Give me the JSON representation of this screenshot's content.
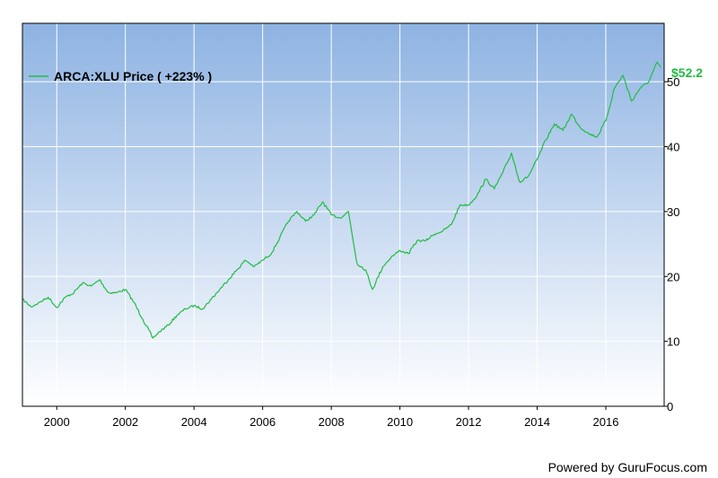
{
  "chart_data": {
    "type": "line",
    "legend": "ARCA:XLU Price ( +223% )",
    "last_value_label": "$52.2",
    "credit": "Powered by GuruFocus.com",
    "x_ticks": [
      "2000",
      "2002",
      "2004",
      "2006",
      "2008",
      "2010",
      "2012",
      "2014",
      "2016"
    ],
    "y_ticks": [
      "0",
      "10",
      "20",
      "30",
      "40",
      "50"
    ],
    "xlim": [
      1999.0,
      2017.7
    ],
    "ylim": [
      0,
      59
    ],
    "legend_position": "top-left",
    "grid": true,
    "colors": {
      "line": "#22bb44",
      "grid": "#ffffff",
      "bg_top": "#8eb3e2",
      "bg_bottom": "#ffffff"
    },
    "series": [
      {
        "x": [
          1999.0,
          1999.25,
          1999.5,
          1999.75,
          2000.0,
          2000.25,
          2000.5,
          2000.75,
          2001.0,
          2001.25,
          2001.5,
          2001.75,
          2002.0,
          2002.25,
          2002.5,
          2002.8,
          2003.0,
          2003.25,
          2003.5,
          2003.75,
          2004.0,
          2004.25,
          2004.5,
          2004.75,
          2005.0,
          2005.25,
          2005.5,
          2005.75,
          2006.0,
          2006.25,
          2006.5,
          2006.75,
          2007.0,
          2007.25,
          2007.5,
          2007.75,
          2008.0,
          2008.25,
          2008.5,
          2008.75,
          2009.0,
          2009.2,
          2009.5,
          2009.75,
          2010.0,
          2010.25,
          2010.5,
          2010.75,
          2011.0,
          2011.25,
          2011.5,
          2011.75,
          2012.0,
          2012.25,
          2012.5,
          2012.75,
          2013.0,
          2013.25,
          2013.5,
          2013.75,
          2014.0,
          2014.25,
          2014.5,
          2014.75,
          2015.0,
          2015.25,
          2015.5,
          2015.75,
          2016.0,
          2016.25,
          2016.5,
          2016.75,
          2017.0,
          2017.25,
          2017.5,
          2017.6
        ],
        "values": [
          16.5,
          15.3,
          16.0,
          16.8,
          15.2,
          16.8,
          17.5,
          19.0,
          18.5,
          19.5,
          17.5,
          17.5,
          18.0,
          16.0,
          13.5,
          10.5,
          11.5,
          12.5,
          14.0,
          15.0,
          15.5,
          15.0,
          16.5,
          18.0,
          19.5,
          21.0,
          22.5,
          21.5,
          22.5,
          23.5,
          26.0,
          28.5,
          30.0,
          28.5,
          29.5,
          31.5,
          29.5,
          29.0,
          30.0,
          22.0,
          21.0,
          18.0,
          21.5,
          23.0,
          24.0,
          23.5,
          25.5,
          25.5,
          26.5,
          27.0,
          28.0,
          31.0,
          31.0,
          32.5,
          35.0,
          33.5,
          36.0,
          39.0,
          34.5,
          35.5,
          38.0,
          41.0,
          43.5,
          42.5,
          45.0,
          43.0,
          42.0,
          41.5,
          44.0,
          49.0,
          51.0,
          47.0,
          49.0,
          50.0,
          53.0,
          52.2
        ]
      }
    ]
  }
}
